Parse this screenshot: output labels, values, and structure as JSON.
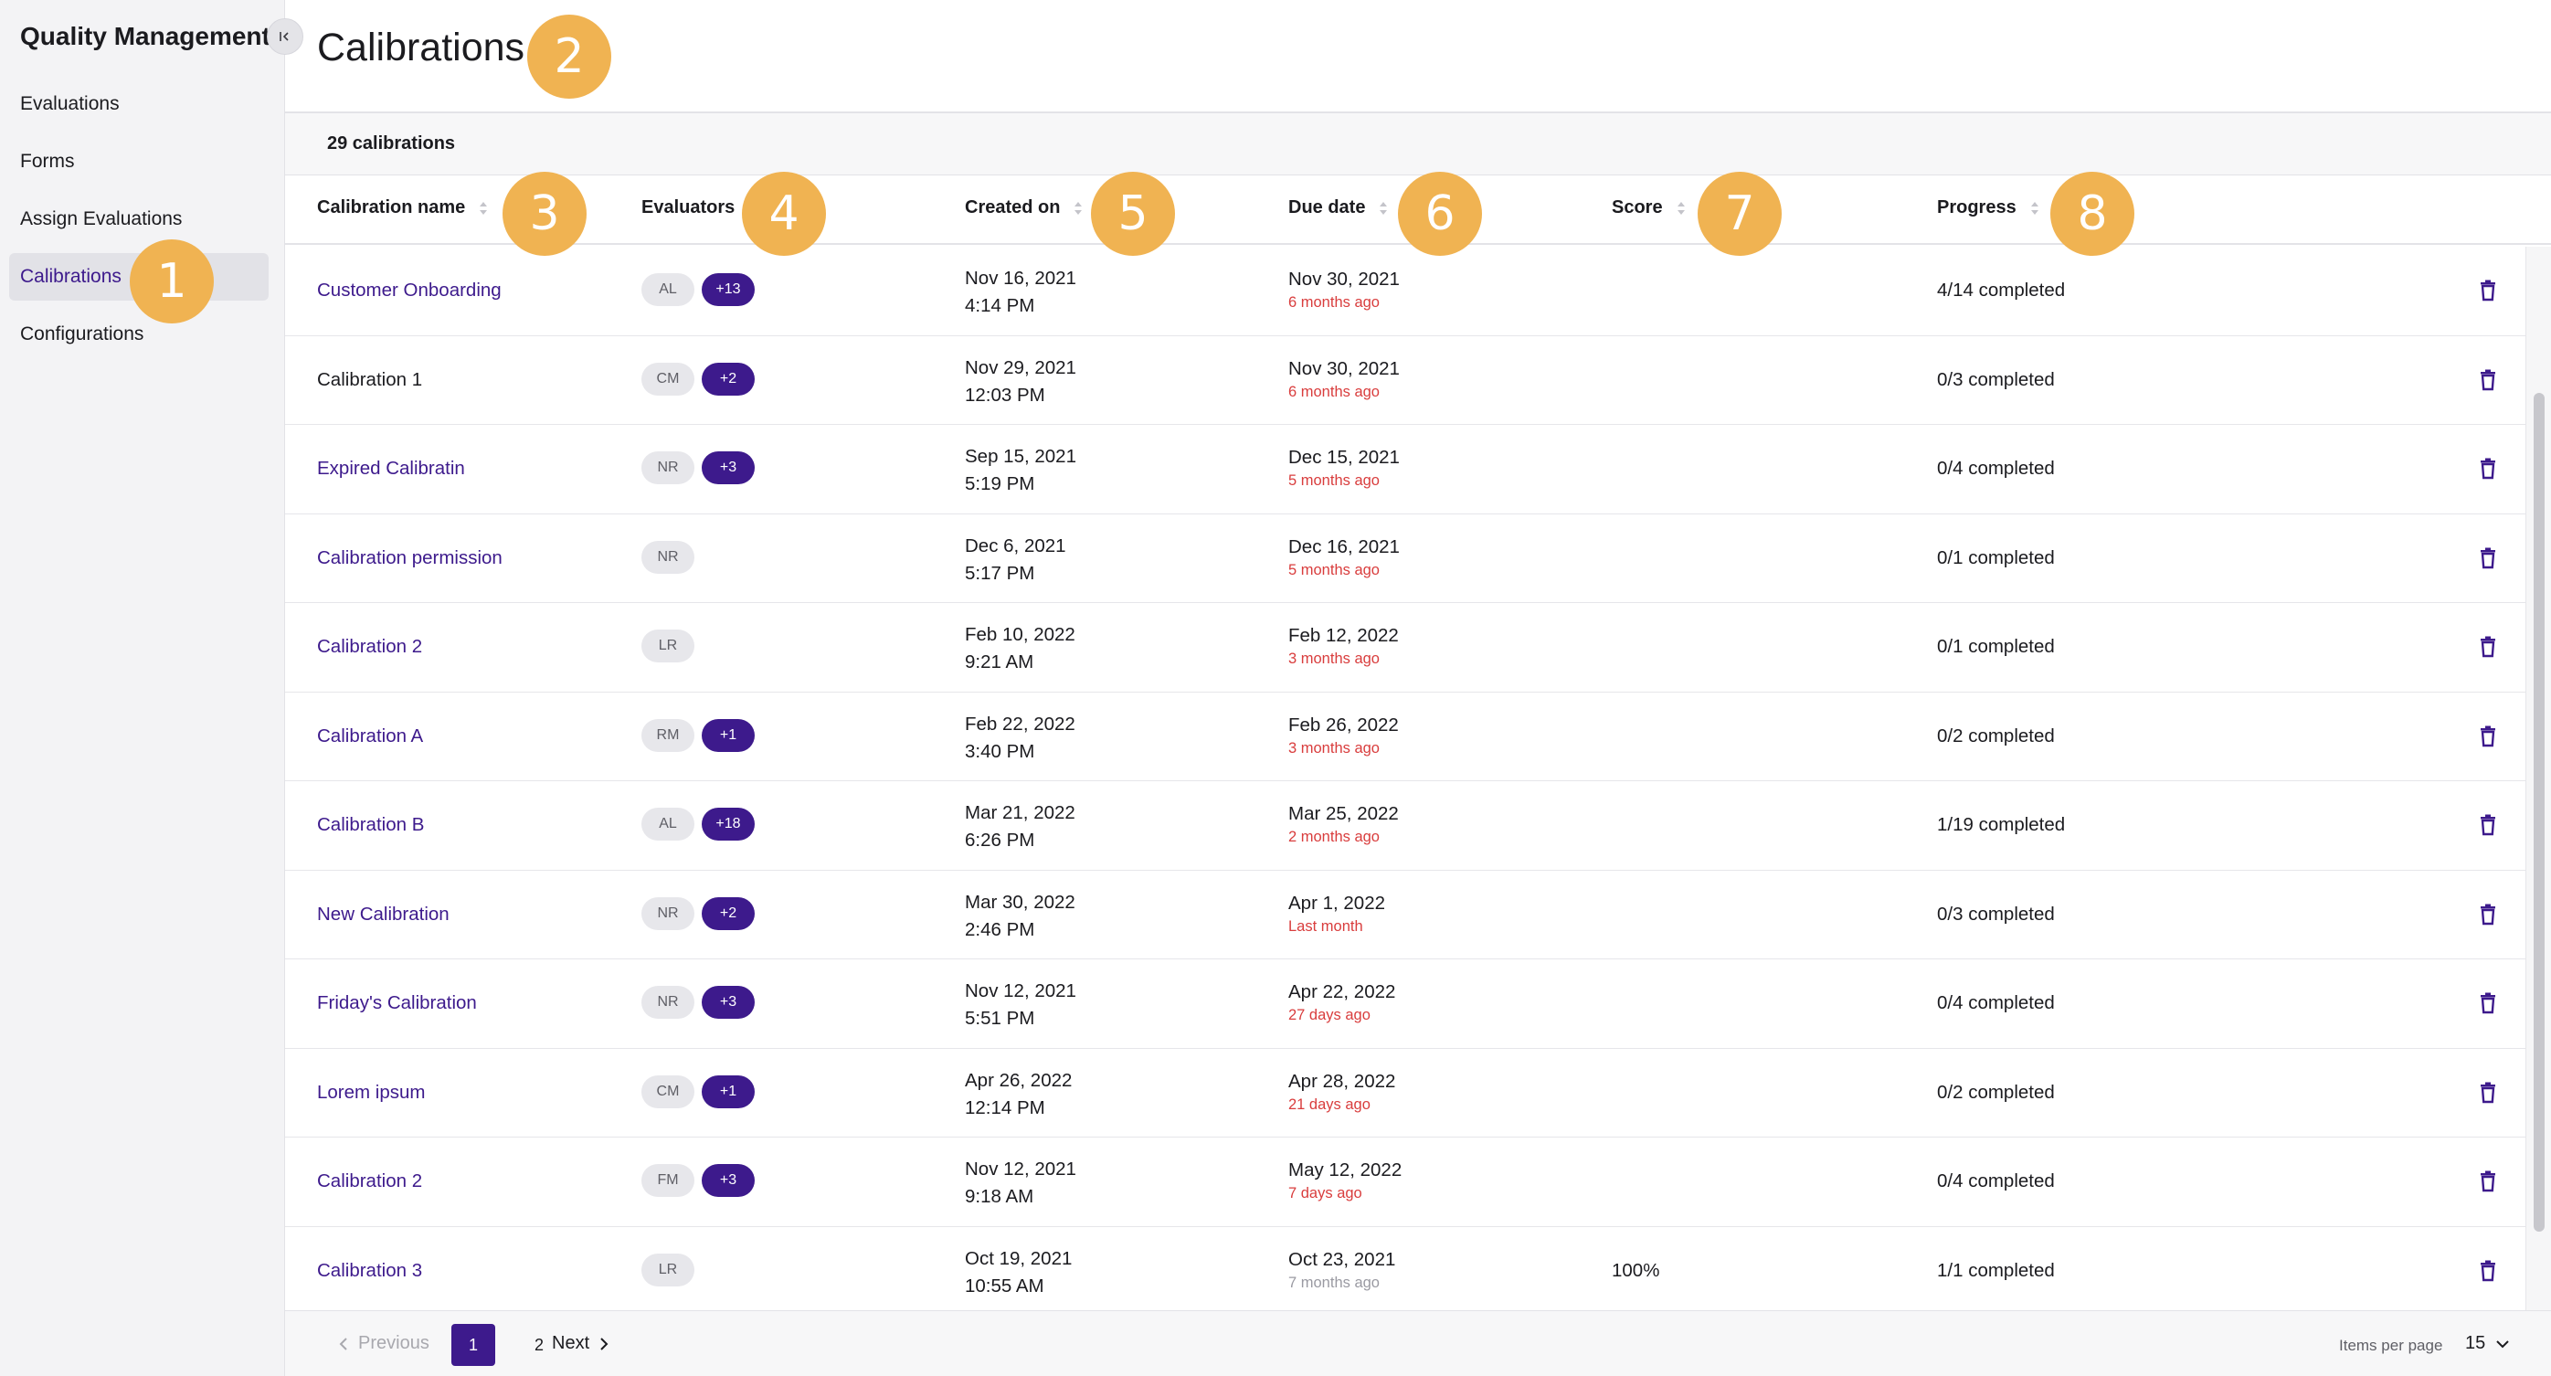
{
  "sidebar": {
    "title": "Quality Management",
    "items": [
      {
        "label": "Evaluations"
      },
      {
        "label": "Forms"
      },
      {
        "label": "Assign Evaluations"
      },
      {
        "label": "Calibrations"
      },
      {
        "label": "Configurations"
      }
    ],
    "active_item": "Calibrations"
  },
  "page": {
    "title": "Calibrations",
    "summary": "29 calibrations"
  },
  "table": {
    "columns": [
      "Calibration name",
      "Evaluators",
      "Created on",
      "Due date",
      "Score",
      "Progress"
    ],
    "rows": [
      {
        "name": "Customer Onboarding",
        "initials": "AL",
        "extra": "+13",
        "created_date": "Nov 16, 2021",
        "created_time": "4:14 PM",
        "due_date": "Nov 30, 2021",
        "due_relative": "6 months ago",
        "score": "",
        "progress": "4/14 completed"
      },
      {
        "name": "Calibration 1",
        "initials": "CM",
        "extra": "+2",
        "created_date": "Nov 29, 2021",
        "created_time": "12:03 PM",
        "due_date": "Nov 30, 2021",
        "due_relative": "6 months ago",
        "score": "",
        "progress": "0/3 completed"
      },
      {
        "name": "Expired Calibratin",
        "initials": "NR",
        "extra": "+3",
        "created_date": "Sep 15, 2021",
        "created_time": "5:19 PM",
        "due_date": "Dec 15, 2021",
        "due_relative": "5 months ago",
        "score": "",
        "progress": "0/4 completed"
      },
      {
        "name": "Calibration permission",
        "initials": "NR",
        "extra": "",
        "created_date": "Dec 6, 2021",
        "created_time": "5:17 PM",
        "due_date": "Dec 16, 2021",
        "due_relative": "5 months ago",
        "score": "",
        "progress": "0/1 completed"
      },
      {
        "name": "Calibration 2",
        "initials": "LR",
        "extra": "",
        "created_date": "Feb 10, 2022",
        "created_time": "9:21 AM",
        "due_date": "Feb 12, 2022",
        "due_relative": "3 months ago",
        "score": "",
        "progress": "0/1 completed"
      },
      {
        "name": "Calibration A",
        "initials": "RM",
        "extra": "+1",
        "created_date": "Feb 22, 2022",
        "created_time": "3:40 PM",
        "due_date": "Feb 26, 2022",
        "due_relative": "3 months ago",
        "score": "",
        "progress": "0/2 completed"
      },
      {
        "name": "Calibration B",
        "initials": "AL",
        "extra": "+18",
        "created_date": "Mar 21, 2022",
        "created_time": "6:26 PM",
        "due_date": "Mar 25, 2022",
        "due_relative": "2 months ago",
        "score": "",
        "progress": "1/19 completed"
      },
      {
        "name": "New Calibration",
        "initials": "NR",
        "extra": "+2",
        "created_date": "Mar 30, 2022",
        "created_time": "2:46 PM",
        "due_date": "Apr 1, 2022",
        "due_relative": "Last month",
        "score": "",
        "progress": "0/3 completed"
      },
      {
        "name": "Friday's Calibration",
        "initials": "NR",
        "extra": "+3",
        "created_date": "Nov 12, 2021",
        "created_time": "5:51 PM",
        "due_date": "Apr 22, 2022",
        "due_relative": "27 days ago",
        "score": "",
        "progress": "0/4 completed"
      },
      {
        "name": "Lorem ipsum",
        "initials": "CM",
        "extra": "+1",
        "created_date": "Apr 26, 2022",
        "created_time": "12:14 PM",
        "due_date": "Apr 28, 2022",
        "due_relative": "21 days ago",
        "score": "",
        "progress": "0/2 completed"
      },
      {
        "name": "Calibration 2",
        "initials": "FM",
        "extra": "+3",
        "created_date": "Nov 12, 2021",
        "created_time": "9:18 AM",
        "due_date": "May 12, 2022",
        "due_relative": "7 days ago",
        "score": "",
        "progress": "0/4 completed"
      },
      {
        "name": "Calibration 3",
        "initials": "LR",
        "extra": "",
        "created_date": "Oct 19, 2021",
        "created_time": "10:55 AM",
        "due_date": "Oct 23, 2021",
        "due_relative": "7 months ago",
        "score": "100%",
        "progress": "1/1 completed"
      }
    ]
  },
  "pagination": {
    "previous_label": "Previous",
    "pages": [
      "1",
      "2"
    ],
    "current_page": "1",
    "next_label": "Next",
    "items_per_page_label": "Items per page",
    "items_per_page_value": "15"
  },
  "annotations": [
    "1",
    "2",
    "3",
    "4",
    "5",
    "6",
    "7",
    "8"
  ],
  "colors": {
    "accent": "#3d1a8c",
    "overdue": "#d93d3d",
    "annotation": "#f0b352"
  },
  "icons": {
    "collapse": "collapse-sidebar-icon",
    "sort": "sort-icon",
    "delete": "trash-icon",
    "prev": "chevron-left-icon",
    "next": "chevron-right-icon",
    "dropdown": "chevron-down-icon"
  }
}
